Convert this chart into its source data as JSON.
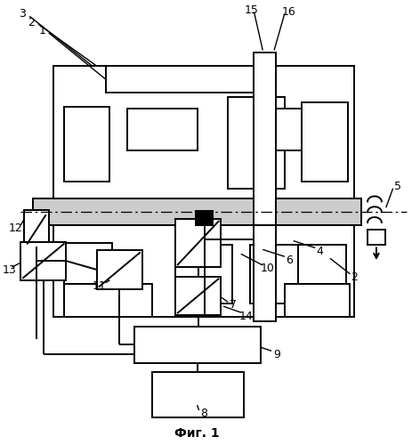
{
  "fig_width": 4.64,
  "fig_height": 5.0,
  "dpi": 100,
  "bg_color": "#ffffff",
  "lw": 1.4,
  "caption": "Фиг. 1"
}
